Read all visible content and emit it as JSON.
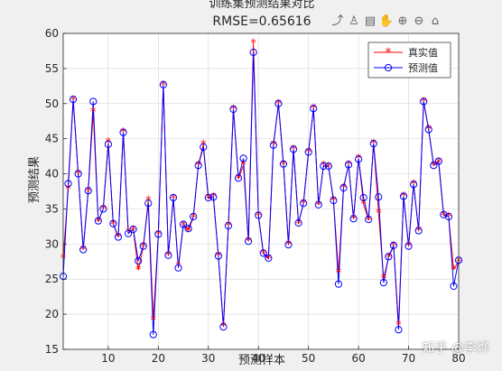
{
  "toolbar": {
    "icons": [
      "export-icon",
      "brush-icon",
      "datatips-icon",
      "pan-icon",
      "zoom-in-icon",
      "zoom-out-icon",
      "home-icon"
    ],
    "glyphs": [
      "⤴",
      "♙",
      "▤",
      "✋",
      "⊕",
      "⊖",
      "⌂"
    ]
  },
  "watermark": "知乎 @李烨",
  "chart_data": {
    "type": "line",
    "title": "训练集预测结果对比",
    "subtitle": "RMSE=0.65616",
    "xlabel": "预测样本",
    "ylabel": "预测结果",
    "xlim": [
      1,
      80
    ],
    "ylim": [
      15,
      60
    ],
    "xticks": [
      10,
      20,
      30,
      40,
      50,
      60,
      70,
      80
    ],
    "yticks": [
      15,
      20,
      25,
      30,
      35,
      40,
      45,
      50,
      55,
      60
    ],
    "grid": true,
    "legend_position": "top-right",
    "x": [
      1,
      2,
      3,
      4,
      5,
      6,
      7,
      8,
      9,
      10,
      11,
      12,
      13,
      14,
      15,
      16,
      17,
      18,
      19,
      20,
      21,
      22,
      23,
      24,
      25,
      26,
      27,
      28,
      29,
      30,
      31,
      32,
      33,
      34,
      35,
      36,
      37,
      38,
      39,
      40,
      41,
      42,
      43,
      44,
      45,
      46,
      47,
      48,
      49,
      50,
      51,
      52,
      53,
      54,
      55,
      56,
      57,
      58,
      59,
      60,
      61,
      62,
      63,
      64,
      65,
      66,
      67,
      68,
      69,
      70,
      71,
      72,
      73,
      74,
      75,
      76,
      77,
      78,
      79,
      80
    ],
    "series": [
      {
        "name": "真实值",
        "color": "#ff0000",
        "marker": "asterisk",
        "values": [
          28.0,
          37.8,
          50.5,
          40.0,
          29.2,
          37.5,
          48.8,
          33.2,
          35.0,
          44.5,
          32.8,
          31.0,
          45.9,
          31.7,
          32.0,
          26.3,
          29.6,
          36.2,
          19.2,
          31.4,
          52.6,
          28.4,
          36.5,
          26.8,
          32.7,
          31.9,
          33.8,
          41.2,
          44.2,
          36.5,
          36.7,
          28.3,
          18.3,
          32.6,
          49.2,
          39.3,
          41.2,
          30.4,
          58.6,
          34.0,
          28.6,
          27.9,
          44.1,
          50.0,
          41.3,
          29.9,
          43.5,
          32.9,
          35.8,
          43.1,
          49.3,
          35.6,
          41.2,
          41.0,
          36.2,
          25.9,
          38.0,
          41.3,
          33.6,
          42.2,
          35.7,
          33.4,
          44.3,
          34.4,
          25.1,
          28.1,
          29.7,
          18.5,
          36.8,
          29.7,
          38.5,
          31.9,
          50.3,
          46.4,
          41.2,
          41.6,
          34.1,
          33.9,
          26.4,
          27.5
        ]
      },
      {
        "name": "预测值",
        "color": "#0000ff",
        "marker": "circle",
        "values": [
          25.4,
          38.6,
          50.6,
          40.0,
          29.2,
          37.6,
          50.3,
          33.3,
          35.0,
          44.2,
          32.9,
          31.0,
          45.9,
          31.5,
          32.1,
          27.6,
          29.7,
          35.8,
          17.1,
          31.4,
          52.7,
          28.4,
          36.6,
          26.6,
          32.8,
          32.2,
          33.9,
          41.2,
          43.8,
          36.6,
          36.7,
          28.3,
          18.2,
          32.6,
          49.2,
          39.4,
          42.2,
          30.4,
          57.3,
          34.1,
          28.7,
          28.0,
          44.1,
          50.0,
          41.4,
          29.9,
          43.5,
          33.0,
          35.8,
          43.1,
          49.3,
          35.6,
          41.1,
          41.1,
          36.2,
          24.3,
          38.0,
          41.3,
          33.6,
          42.1,
          36.6,
          33.5,
          44.3,
          36.7,
          24.5,
          28.2,
          29.8,
          17.8,
          36.8,
          29.7,
          38.5,
          31.9,
          50.3,
          46.3,
          41.2,
          41.8,
          34.2,
          33.9,
          24.0,
          27.7
        ]
      }
    ]
  }
}
